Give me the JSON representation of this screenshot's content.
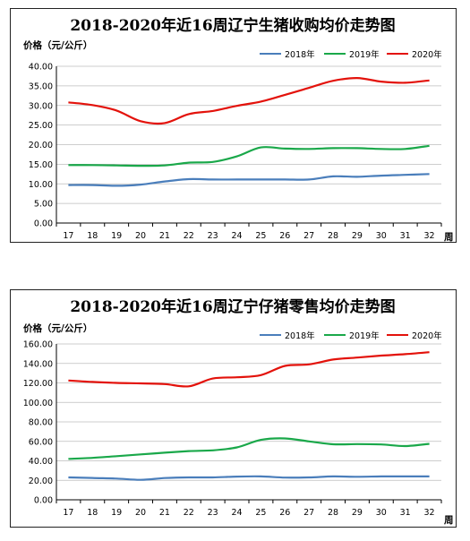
{
  "chart_data": [
    {
      "type": "line",
      "title": "2018-2020年近16周辽宁生猪收购均价走势图",
      "ylabel": "价格（元/公斤）",
      "xlabel": "周",
      "categories": [
        "17",
        "18",
        "19",
        "20",
        "21",
        "22",
        "23",
        "24",
        "25",
        "26",
        "27",
        "28",
        "29",
        "30",
        "31",
        "32"
      ],
      "yticks": [
        "0.00",
        "5.00",
        "10.00",
        "15.00",
        "20.00",
        "25.00",
        "30.00",
        "35.00",
        "40.00"
      ],
      "ylim": [
        0,
        40
      ],
      "legend_position": "top-right",
      "series": [
        {
          "name": "2018年",
          "color": "#4a7ebb",
          "values": [
            9.7,
            9.7,
            9.5,
            9.8,
            10.6,
            11.2,
            11.1,
            11.1,
            11.1,
            11.1,
            11.1,
            11.9,
            11.8,
            12.1,
            12.3,
            12.5
          ]
        },
        {
          "name": "2019年",
          "color": "#1aa84a",
          "values": [
            14.8,
            14.8,
            14.7,
            14.6,
            14.7,
            15.4,
            15.6,
            17.0,
            19.3,
            19.0,
            18.9,
            19.1,
            19.1,
            18.9,
            18.9,
            19.7
          ]
        },
        {
          "name": "2020年",
          "color": "#e3120b",
          "values": [
            30.8,
            30.1,
            28.7,
            26.0,
            25.5,
            27.8,
            28.6,
            29.9,
            31.0,
            32.7,
            34.5,
            36.3,
            37.0,
            36.1,
            35.8,
            36.4
          ]
        }
      ]
    },
    {
      "type": "line",
      "title": "2018-2020年近16周辽宁仔猪零售均价走势图",
      "ylabel": "价格（元/公斤）",
      "xlabel": "周",
      "categories": [
        "17",
        "18",
        "19",
        "20",
        "21",
        "22",
        "23",
        "24",
        "25",
        "26",
        "27",
        "28",
        "29",
        "30",
        "31",
        "32"
      ],
      "yticks": [
        "0.00",
        "20.00",
        "40.00",
        "60.00",
        "80.00",
        "100.00",
        "120.00",
        "140.00",
        "160.00"
      ],
      "ylim": [
        0,
        160
      ],
      "legend_position": "top-right",
      "series": [
        {
          "name": "2018年",
          "color": "#4a7ebb",
          "values": [
            23.0,
            22.4,
            21.8,
            20.5,
            22.3,
            23.0,
            23.0,
            23.8,
            24.0,
            22.8,
            23.0,
            24.0,
            23.6,
            24.0,
            24.0,
            24.0
          ]
        },
        {
          "name": "2019年",
          "color": "#1aa84a",
          "values": [
            42.0,
            43.0,
            44.8,
            46.6,
            48.4,
            50.0,
            50.8,
            53.8,
            61.5,
            63.0,
            60.0,
            57.0,
            57.2,
            56.8,
            55.2,
            57.5
          ]
        },
        {
          "name": "2020年",
          "color": "#e3120b",
          "values": [
            122.5,
            121.0,
            120.0,
            119.5,
            118.8,
            116.5,
            124.5,
            125.8,
            128.0,
            137.5,
            139.0,
            144.0,
            146.0,
            148.0,
            149.5,
            151.5
          ]
        }
      ]
    }
  ]
}
